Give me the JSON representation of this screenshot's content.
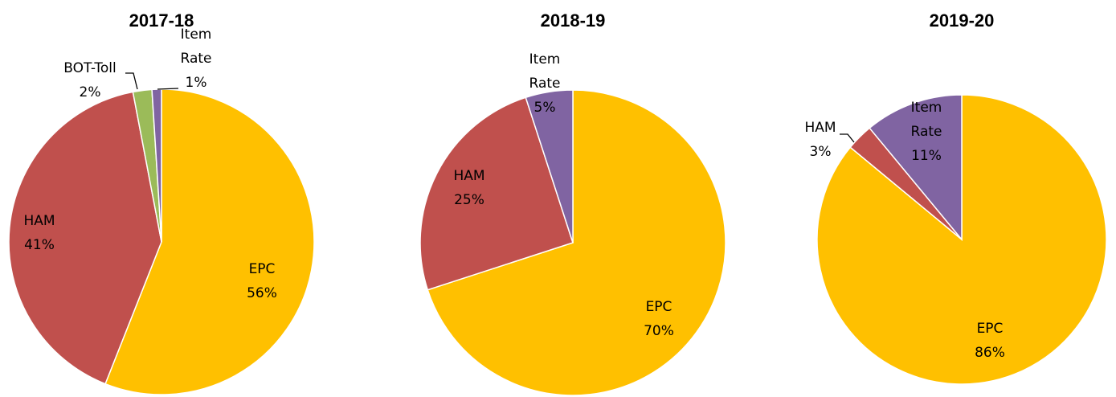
{
  "chart_data": [
    {
      "type": "pie",
      "title": "2017-18",
      "slices": [
        {
          "label": "EPC",
          "percent_label": "56%",
          "value": 56,
          "color": "#FFC000"
        },
        {
          "label": "HAM",
          "percent_label": "41%",
          "value": 41,
          "color": "#C0504D"
        },
        {
          "label": "BOT-Toll",
          "percent_label": "2%",
          "value": 2,
          "color": "#9BBB59"
        },
        {
          "label": "Item Rate",
          "percent_label": "1%",
          "value": 1,
          "color": "#8064A2"
        }
      ]
    },
    {
      "type": "pie",
      "title": "2018-19",
      "slices": [
        {
          "label": "EPC",
          "percent_label": "70%",
          "value": 70,
          "color": "#FFC000"
        },
        {
          "label": "HAM",
          "percent_label": "25%",
          "value": 25,
          "color": "#C0504D"
        },
        {
          "label": "Item Rate",
          "percent_label": "5%",
          "value": 5,
          "color": "#8064A2"
        }
      ]
    },
    {
      "type": "pie",
      "title": "2019-20",
      "slices": [
        {
          "label": "EPC",
          "percent_label": "86%",
          "value": 86,
          "color": "#FFC000"
        },
        {
          "label": "HAM",
          "percent_label": "3%",
          "value": 3,
          "color": "#C0504D"
        },
        {
          "label": "Item Rate",
          "percent_label": "11%",
          "value": 11,
          "color": "#8064A2"
        }
      ]
    }
  ]
}
